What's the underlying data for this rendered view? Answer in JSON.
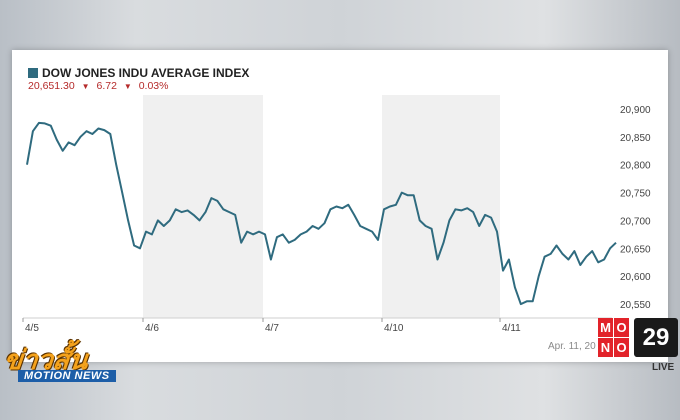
{
  "ticker": {
    "name": "DOW JONES INDU AVERAGE INDEX",
    "price": "20,651.30",
    "change": "6.72",
    "change_pct": "0.03%",
    "color": "#2f6b7f",
    "down_color": "#b52a2a"
  },
  "chart_data": {
    "type": "line",
    "x_ticks": [
      "4/5",
      "4/6",
      "4/7",
      "4/10",
      "4/11"
    ],
    "y_ticks": [
      20900,
      20850,
      20800,
      20750,
      20700,
      20650,
      20600,
      20550
    ],
    "ylim": [
      20525,
      20925
    ],
    "grid": false,
    "shaded_bands": [
      [
        "4/6",
        "4/7"
      ],
      [
        "4/10",
        "4/11"
      ]
    ],
    "series": [
      {
        "values": [
          20800,
          20860,
          20875,
          20874,
          20870,
          20845,
          20825,
          20840,
          20835,
          20850,
          20860,
          20855,
          20865,
          20862,
          20855,
          20800,
          20750,
          20700,
          20655,
          20650,
          20680,
          20675,
          20700,
          20690,
          20700,
          20720,
          20715,
          20718,
          20710,
          20700,
          20715,
          20740,
          20735,
          20720,
          20715,
          20710,
          20660,
          20680,
          20675,
          20680,
          20675,
          20630,
          20670,
          20675,
          20660,
          20665,
          20675,
          20680,
          20690,
          20685,
          20695,
          20720,
          20725,
          20722,
          20728,
          20710,
          20690,
          20685,
          20680,
          20665,
          20720,
          20725,
          20728,
          20750,
          20745,
          20745,
          20700,
          20690,
          20685,
          20630,
          20660,
          20700,
          20720,
          20718,
          20722,
          20715,
          20690,
          20710,
          20705,
          20680,
          20610,
          20630,
          20580,
          20550,
          20555,
          20555,
          20600,
          20635,
          20640,
          20655,
          20640,
          20630,
          20645,
          20620,
          20635,
          20645,
          20625,
          20630,
          20650,
          20660
        ]
      }
    ]
  },
  "footer": {
    "date_stamp": "Apr. 11, 20",
    "show_name_th": "ข่าวสั้น",
    "show_name_en": "MOTION NEWS",
    "channel_letters": [
      "M",
      "O",
      "N",
      "O"
    ],
    "channel_number": "29",
    "live_label": "LIVE"
  }
}
